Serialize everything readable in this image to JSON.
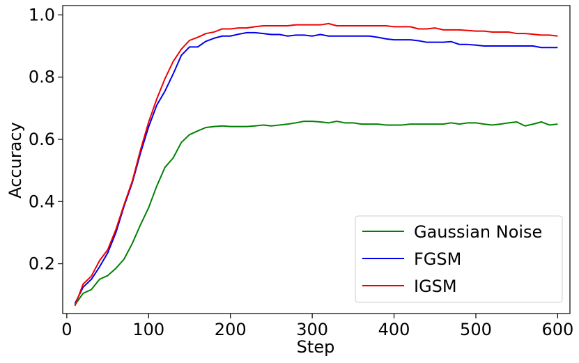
{
  "chart_data": {
    "type": "line",
    "title": "",
    "xlabel": "Step",
    "ylabel": "Accuracy",
    "xlim": [
      -5,
      615
    ],
    "ylim": [
      0.04,
      1.03
    ],
    "xticks": [
      0,
      100,
      200,
      300,
      400,
      500,
      600
    ],
    "xtick_labels": [
      "0",
      "100",
      "200",
      "300",
      "400",
      "500",
      "600"
    ],
    "yticks": [
      0.2,
      0.4,
      0.6,
      0.8,
      1.0
    ],
    "ytick_labels": [
      "0.2",
      "0.4",
      "0.6",
      "0.8",
      "1.0"
    ],
    "grid": false,
    "legend_position": "lower-right",
    "x": [
      10,
      20,
      30,
      40,
      50,
      60,
      70,
      80,
      90,
      100,
      110,
      120,
      130,
      140,
      150,
      160,
      170,
      180,
      190,
      200,
      210,
      220,
      230,
      240,
      250,
      260,
      270,
      280,
      290,
      300,
      310,
      320,
      330,
      340,
      350,
      360,
      370,
      380,
      390,
      400,
      410,
      420,
      430,
      440,
      450,
      460,
      470,
      480,
      490,
      500,
      510,
      520,
      530,
      540,
      550,
      560,
      570,
      580,
      590,
      600
    ],
    "series": [
      {
        "name": "Gaussian Noise",
        "color": "#008000",
        "values": [
          0.068,
          0.105,
          0.117,
          0.15,
          0.162,
          0.185,
          0.215,
          0.265,
          0.325,
          0.38,
          0.45,
          0.51,
          0.54,
          0.59,
          0.615,
          0.627,
          0.638,
          0.641,
          0.643,
          0.641,
          0.641,
          0.641,
          0.643,
          0.646,
          0.643,
          0.646,
          0.649,
          0.653,
          0.658,
          0.658,
          0.656,
          0.653,
          0.658,
          0.653,
          0.653,
          0.649,
          0.649,
          0.649,
          0.646,
          0.646,
          0.646,
          0.649,
          0.649,
          0.649,
          0.649,
          0.649,
          0.653,
          0.649,
          0.653,
          0.653,
          0.649,
          0.646,
          0.649,
          0.653,
          0.656,
          0.643,
          0.649,
          0.656,
          0.646,
          0.649
        ]
      },
      {
        "name": "FGSM",
        "color": "#0000ee",
        "values": [
          0.072,
          0.125,
          0.15,
          0.19,
          0.235,
          0.3,
          0.385,
          0.46,
          0.555,
          0.64,
          0.71,
          0.755,
          0.81,
          0.87,
          0.897,
          0.897,
          0.915,
          0.925,
          0.932,
          0.932,
          0.938,
          0.943,
          0.943,
          0.94,
          0.937,
          0.937,
          0.932,
          0.935,
          0.935,
          0.932,
          0.937,
          0.932,
          0.932,
          0.932,
          0.932,
          0.932,
          0.932,
          0.928,
          0.923,
          0.92,
          0.92,
          0.92,
          0.917,
          0.912,
          0.912,
          0.912,
          0.914,
          0.905,
          0.905,
          0.903,
          0.9,
          0.9,
          0.9,
          0.9,
          0.9,
          0.9,
          0.9,
          0.895,
          0.895,
          0.895
        ]
      },
      {
        "name": "IGSM",
        "color": "#ee0000",
        "values": [
          0.065,
          0.135,
          0.16,
          0.21,
          0.245,
          0.31,
          0.39,
          0.465,
          0.565,
          0.655,
          0.73,
          0.795,
          0.85,
          0.89,
          0.918,
          0.928,
          0.94,
          0.945,
          0.955,
          0.955,
          0.958,
          0.958,
          0.962,
          0.965,
          0.965,
          0.965,
          0.965,
          0.968,
          0.968,
          0.968,
          0.968,
          0.972,
          0.965,
          0.965,
          0.965,
          0.965,
          0.965,
          0.965,
          0.965,
          0.962,
          0.962,
          0.962,
          0.955,
          0.955,
          0.958,
          0.952,
          0.952,
          0.952,
          0.95,
          0.948,
          0.948,
          0.945,
          0.945,
          0.945,
          0.94,
          0.94,
          0.938,
          0.935,
          0.935,
          0.932
        ]
      }
    ]
  }
}
